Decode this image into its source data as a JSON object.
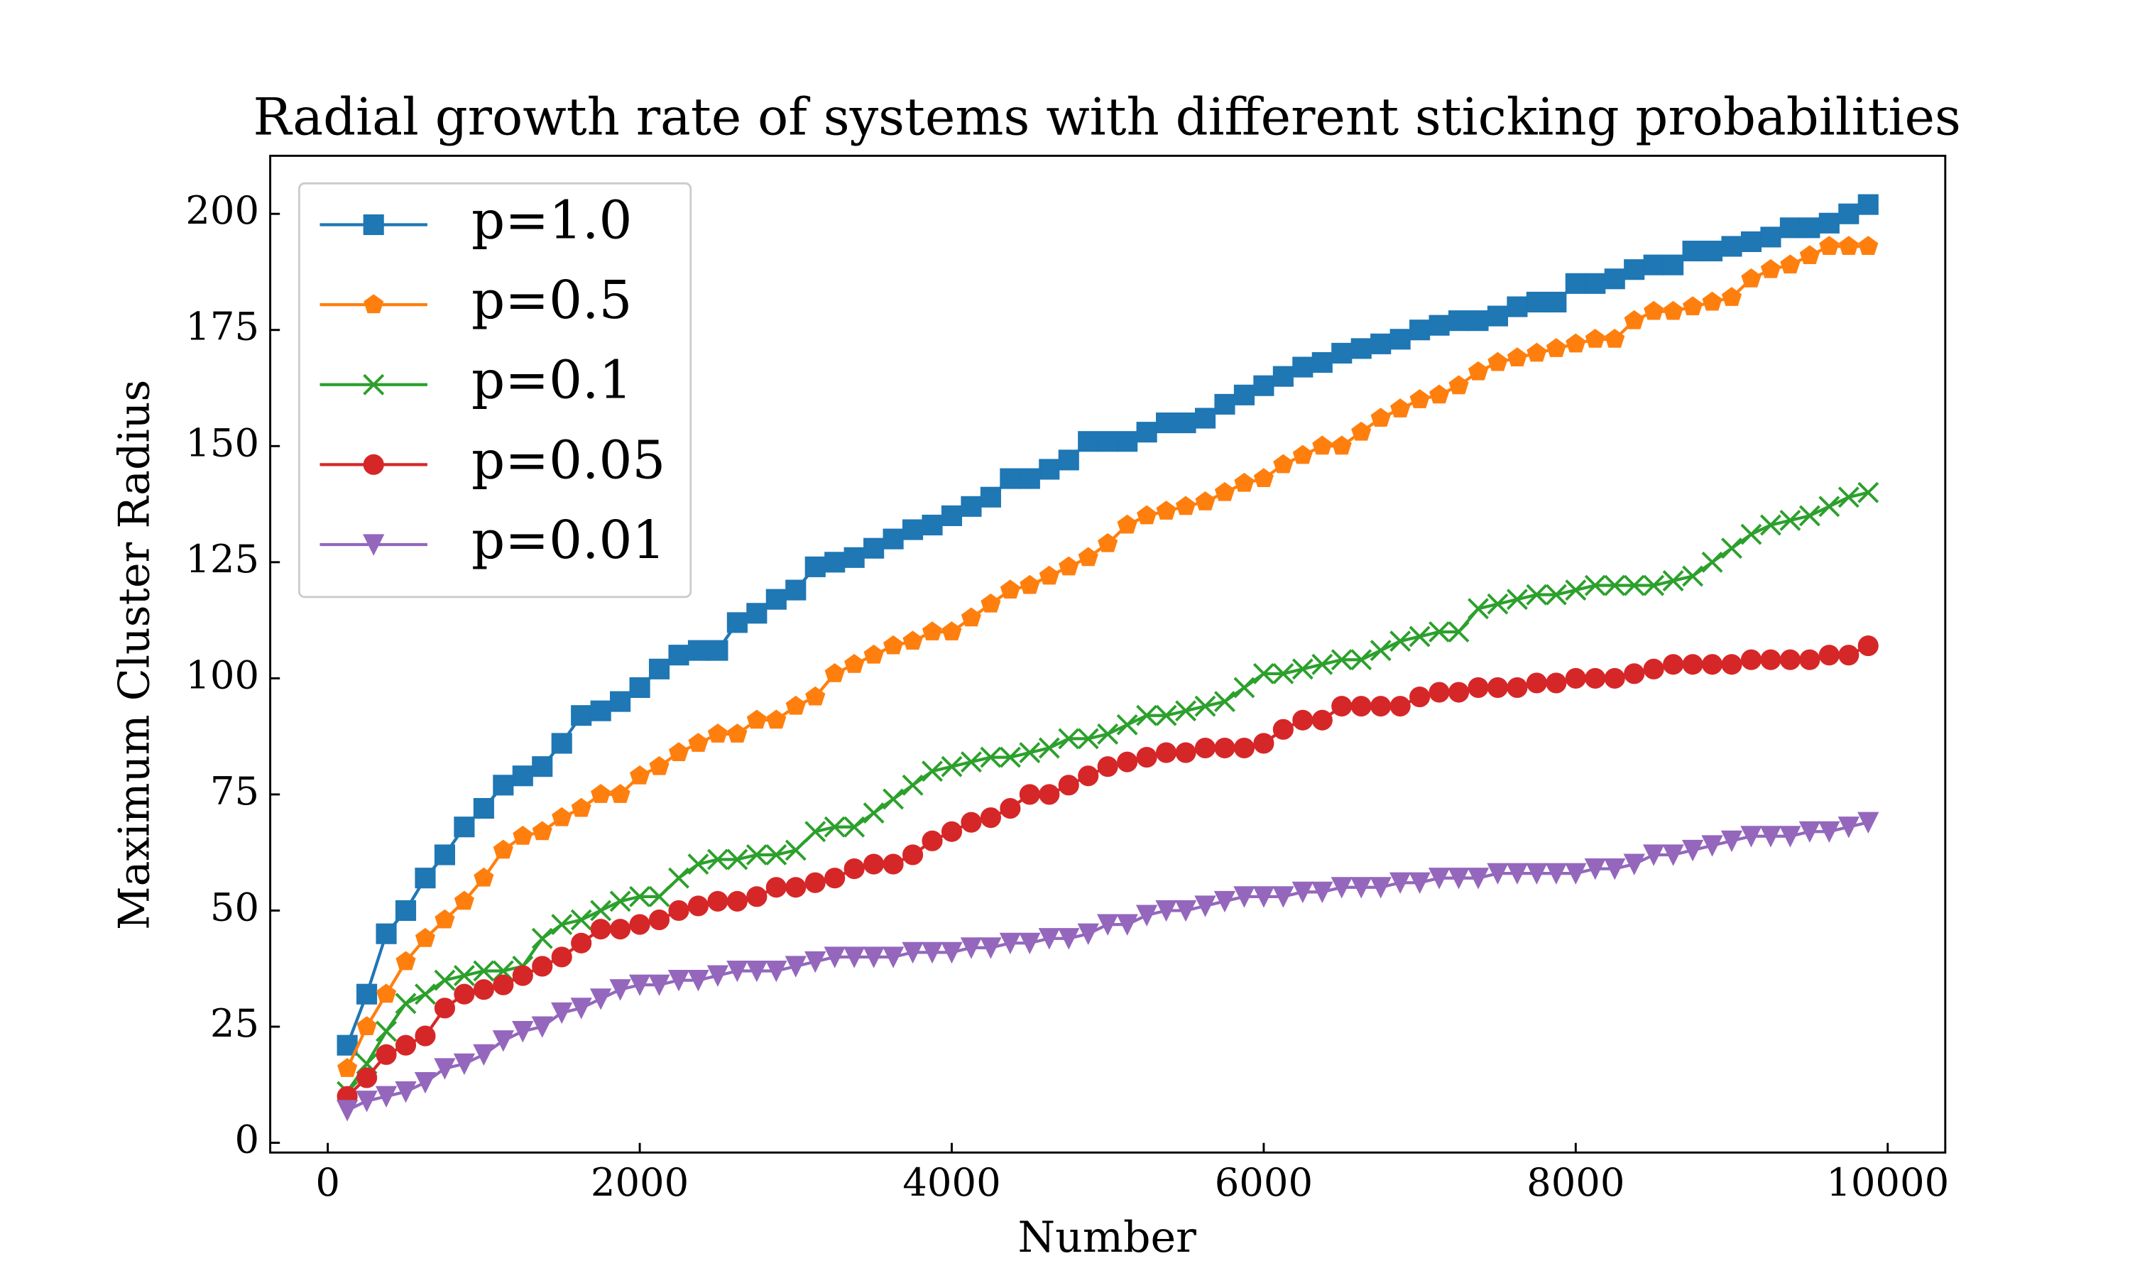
{
  "chart_data": {
    "type": "line",
    "title": "Radial growth rate of systems with different sticking probabilities",
    "xlabel": "Number",
    "ylabel": "Maximum Cluster Radius",
    "x": [
      125,
      250,
      375,
      500,
      625,
      750,
      875,
      1000,
      1125,
      1250,
      1375,
      1500,
      1625,
      1750,
      1875,
      2000,
      2125,
      2250,
      2375,
      2500,
      2625,
      2750,
      2875,
      3000,
      3125,
      3250,
      3375,
      3500,
      3625,
      3750,
      3875,
      4000,
      4125,
      4250,
      4375,
      4500,
      4625,
      4750,
      4875,
      5000,
      5125,
      5250,
      5375,
      5500,
      5625,
      5750,
      5875,
      6000,
      6125,
      6250,
      6375,
      6500,
      6625,
      6750,
      6875,
      7000,
      7125,
      7250,
      7375,
      7500,
      7625,
      7750,
      7875,
      8000,
      8125,
      8250,
      8375,
      8500,
      8625,
      8750,
      8875,
      9000,
      9125,
      9250,
      9375,
      9500,
      9625,
      9750,
      9875
    ],
    "series": [
      {
        "name": "p=1.0",
        "color": "#1f77b4",
        "marker": "square",
        "values": [
          21,
          32,
          45,
          50,
          57,
          62,
          68,
          72,
          77,
          79,
          81,
          86,
          92,
          93,
          95,
          98,
          102,
          105,
          106,
          106,
          112,
          114,
          117,
          119,
          124,
          125,
          126,
          128,
          130,
          132,
          133,
          135,
          137,
          139,
          143,
          143,
          145,
          147,
          151,
          151,
          151,
          153,
          155,
          155,
          156,
          159,
          161,
          163,
          165,
          167,
          168,
          170,
          171,
          172,
          173,
          175,
          176,
          177,
          177,
          178,
          180,
          181,
          181,
          185,
          185,
          186,
          188,
          189,
          189,
          192,
          192,
          193,
          194,
          195,
          197,
          197,
          198,
          200,
          202
        ]
      },
      {
        "name": "p=0.5",
        "color": "#ff7f0e",
        "marker": "pentagon",
        "values": [
          16,
          25,
          32,
          39,
          44,
          48,
          52,
          57,
          63,
          66,
          67,
          70,
          72,
          75,
          75,
          79,
          81,
          84,
          86,
          88,
          88,
          91,
          91,
          94,
          96,
          101,
          103,
          105,
          107,
          108,
          110,
          110,
          113,
          116,
          119,
          120,
          122,
          124,
          126,
          129,
          133,
          135,
          136,
          137,
          138,
          140,
          142,
          143,
          146,
          148,
          150,
          150,
          153,
          156,
          158,
          160,
          161,
          163,
          166,
          168,
          169,
          170,
          171,
          172,
          173,
          173,
          177,
          179,
          179,
          180,
          181,
          182,
          186,
          188,
          189,
          191,
          193,
          193,
          193
        ]
      },
      {
        "name": "p=0.1",
        "color": "#2ca02c",
        "marker": "x",
        "values": [
          11,
          17,
          24,
          30,
          32,
          35,
          36,
          37,
          37,
          38,
          44,
          47,
          48,
          50,
          52,
          53,
          53,
          57,
          60,
          61,
          61,
          62,
          62,
          63,
          67,
          68,
          68,
          71,
          74,
          77,
          80,
          81,
          82,
          83,
          83,
          84,
          85,
          87,
          87,
          88,
          90,
          92,
          92,
          93,
          94,
          95,
          98,
          101,
          101,
          102,
          103,
          104,
          104,
          106,
          108,
          109,
          110,
          110,
          115,
          116,
          117,
          118,
          118,
          119,
          120,
          120,
          120,
          120,
          121,
          122,
          125,
          128,
          131,
          133,
          134,
          135,
          137,
          139,
          140
        ]
      },
      {
        "name": "p=0.05",
        "color": "#d62728",
        "marker": "circle",
        "values": [
          10,
          14,
          19,
          21,
          23,
          29,
          32,
          33,
          34,
          36,
          38,
          40,
          43,
          46,
          46,
          47,
          48,
          50,
          51,
          52,
          52,
          53,
          55,
          55,
          56,
          57,
          59,
          60,
          60,
          62,
          65,
          67,
          69,
          70,
          72,
          75,
          75,
          77,
          79,
          81,
          82,
          83,
          84,
          84,
          85,
          85,
          85,
          86,
          89,
          91,
          91,
          94,
          94,
          94,
          94,
          96,
          97,
          97,
          98,
          98,
          98,
          99,
          99,
          100,
          100,
          100,
          101,
          102,
          103,
          103,
          103,
          103,
          104,
          104,
          104,
          104,
          105,
          105,
          107
        ]
      },
      {
        "name": "p=0.01",
        "color": "#9467bd",
        "marker": "triangle-down",
        "values": [
          7,
          9,
          10,
          11,
          13,
          16,
          17,
          19,
          22,
          24,
          25,
          28,
          29,
          31,
          33,
          34,
          34,
          35,
          35,
          36,
          37,
          37,
          37,
          38,
          39,
          40,
          40,
          40,
          40,
          41,
          41,
          41,
          42,
          42,
          43,
          43,
          44,
          44,
          45,
          47,
          47,
          49,
          50,
          50,
          51,
          52,
          53,
          53,
          53,
          54,
          54,
          55,
          55,
          55,
          56,
          56,
          57,
          57,
          57,
          58,
          58,
          58,
          58,
          58,
          59,
          59,
          60,
          62,
          62,
          63,
          64,
          65,
          66,
          66,
          66,
          67,
          67,
          68,
          69
        ]
      }
    ],
    "xlim": [
      -369,
      10369
    ],
    "ylim": [
      -2.1,
      212.5
    ],
    "xticks": [
      0,
      2000,
      4000,
      6000,
      8000,
      10000
    ],
    "yticks": [
      0,
      25,
      50,
      75,
      100,
      125,
      150,
      175,
      200
    ],
    "legend": "upper-left",
    "grid": false
  }
}
